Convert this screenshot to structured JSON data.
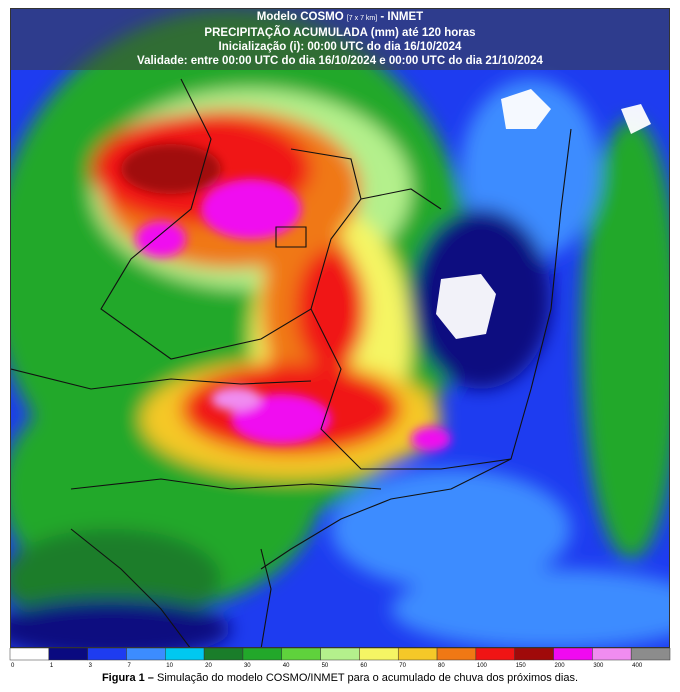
{
  "header": {
    "title": "Modelo COSMO",
    "resolution": "[7 x 7 km]",
    "org": "- INMET",
    "line2": "PRECIPITAÇÃO ACUMULADA (mm) até 120 horas",
    "line3": "Inicialização (i): 00:00 UTC do dia 16/10/2024",
    "line4": "Validade: entre 00:00 UTC do dia 16/10/2024 e 00:00 UTC do dia 21/10/2024"
  },
  "colorbar": {
    "labels": [
      "0",
      "1",
      "3",
      "7",
      "10",
      "20",
      "30",
      "40",
      "50",
      "60",
      "70",
      "80",
      "100",
      "150",
      "200",
      "300",
      "400"
    ],
    "colors": [
      "#ffffff",
      "#0a0a80",
      "#1e3cf0",
      "#3c8cff",
      "#00c8f0",
      "#1a7d2a",
      "#22a82a",
      "#5fd23c",
      "#b4f08c",
      "#f5f564",
      "#f5c828",
      "#f07814",
      "#f01414",
      "#a00a0a",
      "#f00af0",
      "#f08cf0",
      "#8c8c8c"
    ]
  },
  "caption": {
    "label": "Figura 1 –",
    "text": "Simulação do modelo COSMO/INMET para o acumulado de chuva dos próximos dias."
  }
}
